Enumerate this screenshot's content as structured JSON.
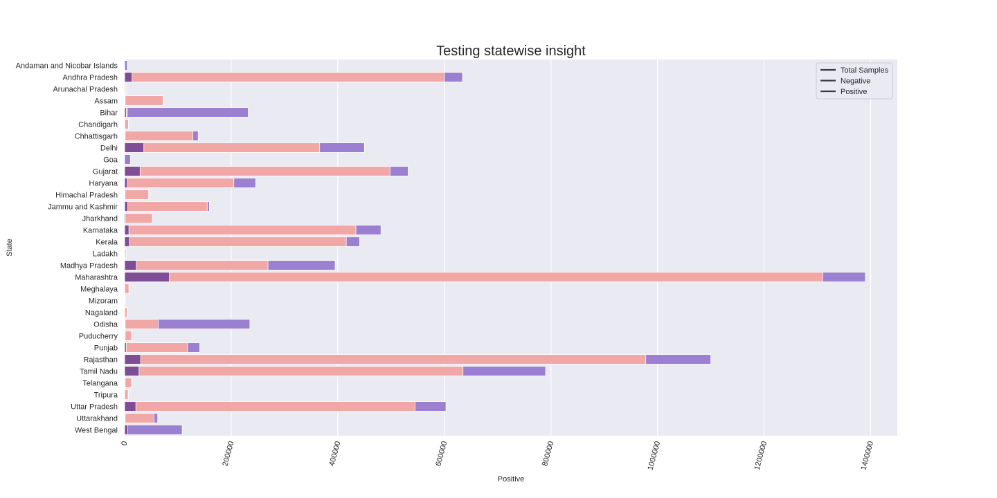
{
  "chart_data": {
    "type": "bar",
    "orientation": "horizontal",
    "title": "Testing statewise insight",
    "xlabel": "Positive",
    "ylabel": "State",
    "xlim": [
      0,
      1450000
    ],
    "xticks": [
      0,
      200000,
      400000,
      600000,
      800000,
      1000000,
      1200000,
      1400000
    ],
    "grid": true,
    "legend_position": "top-right",
    "categories": [
      "Andaman and Nicobar Islands",
      "Andhra Pradesh",
      "Arunachal Pradesh",
      "Assam",
      "Bihar",
      "Chandigarh",
      "Chhattisgarh",
      "Delhi",
      "Goa",
      "Gujarat",
      "Haryana",
      "Himachal Pradesh",
      "Jammu and Kashmir",
      "Jharkhand",
      "Karnataka",
      "Kerala",
      "Ladakh",
      "Madhya Pradesh",
      "Maharashtra",
      "Meghalaya",
      "Mizoram",
      "Nagaland",
      "Odisha",
      "Puducherry",
      "Punjab",
      "Rajasthan",
      "Tamil Nadu",
      "Telangana",
      "Tripura",
      "Uttar Pradesh",
      "Uttarakhand",
      "West Bengal"
    ],
    "series": [
      {
        "name": "Total Samples",
        "color": "#9b7fd0",
        "values": [
          5000,
          634000,
          2500,
          72000,
          232000,
          7500,
          138000,
          450000,
          11000,
          532000,
          246000,
          46000,
          159000,
          52000,
          481000,
          441000,
          3000,
          395000,
          1390000,
          8000,
          900,
          5000,
          235000,
          14000,
          141000,
          1100000,
          790000,
          14000,
          7000,
          603000,
          62000,
          108000
        ]
      },
      {
        "name": "Negative",
        "color": "#f2a7a7",
        "values": [
          0,
          600000,
          2000,
          72000,
          5000,
          7000,
          128000,
          366000,
          0,
          498000,
          205000,
          45000,
          155000,
          52000,
          434000,
          416000,
          2500,
          269000,
          1310000,
          8000,
          800,
          4500,
          63000,
          13000,
          118000,
          978000,
          635000,
          13000,
          6500,
          545000,
          55000,
          5000
        ]
      },
      {
        "name": "Positive",
        "color": "#7e4d96",
        "values": [
          100,
          14000,
          200,
          1000,
          3000,
          500,
          1000,
          36000,
          0,
          29000,
          5000,
          800,
          6000,
          2000,
          8000,
          9000,
          300,
          22000,
          84000,
          100,
          0,
          100,
          1000,
          1000,
          3000,
          30000,
          27000,
          1000,
          100,
          21000,
          1000,
          6000
        ]
      }
    ]
  }
}
